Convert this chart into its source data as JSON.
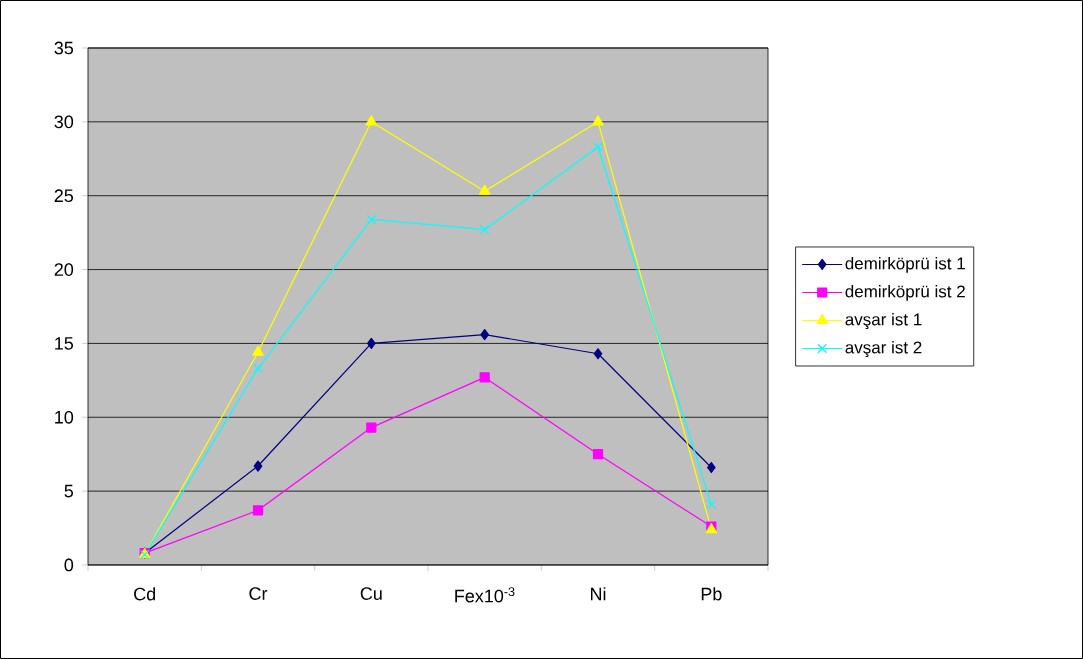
{
  "chart_data": {
    "type": "line",
    "categories": [
      "Cd",
      "Cr",
      "Cu",
      "Fex10$^{-3}$",
      "Ni",
      "Pb"
    ],
    "series": [
      {
        "name": "demirköprü ist 1",
        "color": "#000080",
        "marker": "diamond",
        "values": [
          0.8,
          6.7,
          15.0,
          15.6,
          14.3,
          6.6
        ]
      },
      {
        "name": "demirköprü ist 2",
        "color": "#ff00ff",
        "marker": "square",
        "values": [
          0.8,
          3.7,
          9.3,
          12.7,
          7.5,
          2.6
        ]
      },
      {
        "name": "avşar ist 1",
        "color": "#ffff00",
        "marker": "triangle",
        "values": [
          0.7,
          14.4,
          30.0,
          25.3,
          30.0,
          2.4
        ]
      },
      {
        "name": "avşar ist 2",
        "color": "#00ffff",
        "marker": "cross",
        "values": [
          0.7,
          13.3,
          23.4,
          22.7,
          28.3,
          4.1
        ]
      }
    ],
    "ylim": [
      0,
      35
    ],
    "yticks": [
      0,
      5,
      10,
      15,
      20,
      25,
      30,
      35
    ],
    "grid": "y",
    "legend": "right"
  }
}
